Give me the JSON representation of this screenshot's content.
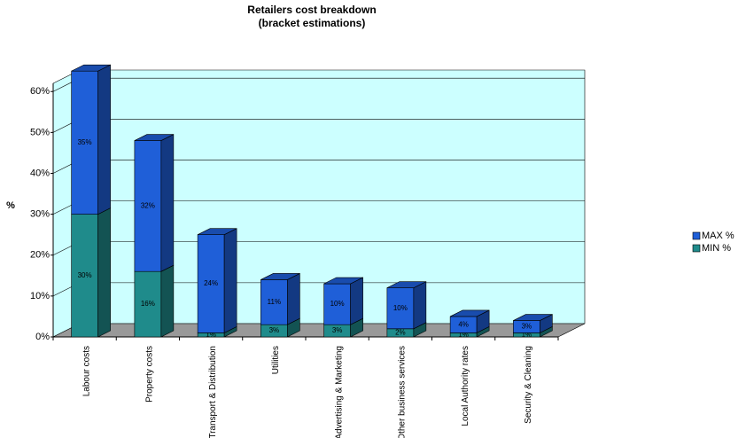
{
  "chart_data": {
    "type": "bar3d_stacked",
    "title": "Retailers cost breakdown",
    "subtitle": "(bracket estimations)",
    "y_label": "%",
    "categories": [
      "Labour costs",
      "Property costs",
      "Transport & Distribution",
      "Utilities",
      "Advertising & Marketing",
      "Other business services",
      "Local Authority rates",
      "Security & Cleaning"
    ],
    "series": [
      {
        "name": "MIN %",
        "color": "#1f8b8b",
        "values": [
          30,
          16,
          1,
          3,
          3,
          2,
          1,
          1
        ],
        "value_labels": [
          "30%",
          "16%",
          "1%",
          "3%",
          "3%",
          "2%",
          "1%",
          "1%"
        ]
      },
      {
        "name": "MAX %",
        "color": "#1f5fd8",
        "values": [
          35,
          32,
          24,
          11,
          10,
          10,
          4,
          3
        ],
        "value_labels": [
          "35%",
          "32%",
          "24%",
          "11%",
          "10%",
          "10%",
          "4%",
          "3%"
        ]
      }
    ],
    "ylim": [
      0,
      62
    ],
    "yticks": [
      {
        "value": 0,
        "label": "0%"
      },
      {
        "value": 10,
        "label": "10%"
      },
      {
        "value": 20,
        "label": "20%"
      },
      {
        "value": 30,
        "label": "30%"
      },
      {
        "value": 40,
        "label": "40%"
      },
      {
        "value": 50,
        "label": "50%"
      },
      {
        "value": 60,
        "label": "60%"
      }
    ],
    "grid": true,
    "legend": "right"
  }
}
